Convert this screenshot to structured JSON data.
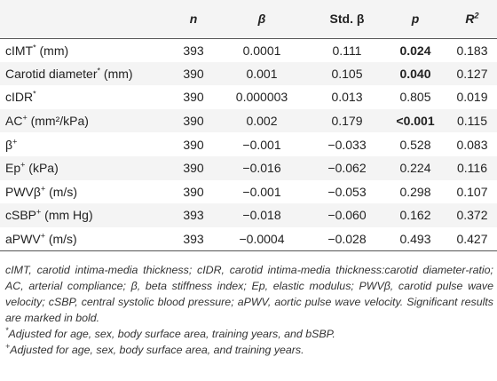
{
  "table": {
    "headers": {
      "label": "",
      "n": "n",
      "beta": "β",
      "std_beta": "Std. β",
      "p": "p",
      "r2_base": "R",
      "r2_sup": "2"
    },
    "rows": [
      {
        "label_main": "cIMT",
        "label_sup": "*",
        "label_tail": " (mm)",
        "n": "393",
        "beta": "0.0001",
        "std_beta": "0.111",
        "p": "0.024",
        "p_bold": true,
        "r2": "0.183"
      },
      {
        "label_main": "Carotid diameter",
        "label_sup": "*",
        "label_tail": " (mm)",
        "n": "390",
        "beta": "0.001",
        "std_beta": "0.105",
        "p": "0.040",
        "p_bold": true,
        "r2": "0.127"
      },
      {
        "label_main": "cIDR",
        "label_sup": "*",
        "label_tail": "",
        "n": "390",
        "beta": "0.000003",
        "std_beta": "0.013",
        "p": "0.805",
        "p_bold": false,
        "r2": "0.019"
      },
      {
        "label_main": "AC",
        "label_sup": "+",
        "label_tail": " (mm²/kPa)",
        "n": "390",
        "beta": "0.002",
        "std_beta": "0.179",
        "p": "<0.001",
        "p_bold": true,
        "r2": "0.115"
      },
      {
        "label_main": "β",
        "label_sup": "+",
        "label_tail": "",
        "n": "390",
        "beta": "−0.001",
        "std_beta": "−0.033",
        "p": "0.528",
        "p_bold": false,
        "r2": "0.083"
      },
      {
        "label_main": "Ep",
        "label_sup": "+",
        "label_tail": " (kPa)",
        "n": "390",
        "beta": "−0.016",
        "std_beta": "−0.062",
        "p": "0.224",
        "p_bold": false,
        "r2": "0.116"
      },
      {
        "label_main": "PWVβ",
        "label_sup": "+",
        "label_tail": " (m/s)",
        "n": "390",
        "beta": "−0.001",
        "std_beta": "−0.053",
        "p": "0.298",
        "p_bold": false,
        "r2": "0.107"
      },
      {
        "label_main": "cSBP",
        "label_sup": "+",
        "label_tail": " (mm Hg)",
        "n": "393",
        "beta": "−0.018",
        "std_beta": "−0.060",
        "p": "0.162",
        "p_bold": false,
        "r2": "0.372"
      },
      {
        "label_main": "aPWV",
        "label_sup": "+",
        "label_tail": " (m/s)",
        "n": "393",
        "beta": "−0.0004",
        "std_beta": "−0.028",
        "p": "0.493",
        "p_bold": false,
        "r2": "0.427"
      }
    ]
  },
  "footnotes": {
    "abbrev": "cIMT, carotid intima-media thickness; cIDR, carotid intima-media thickness:carotid diameter-ratio; AC, arterial compliance; β, beta stiffness index; Ep, elastic modulus; PWVβ, carotid pulse wave velocity; cSBP, central systolic blood pressure; aPWV, aortic pulse wave velocity. Significant results are marked in bold.",
    "star_mark": "*",
    "star_text": "Adjusted for age, sex, body surface area, training years, and bSBP.",
    "plus_mark": "+",
    "plus_text": "Adjusted for age, sex, body surface area, and training years."
  }
}
